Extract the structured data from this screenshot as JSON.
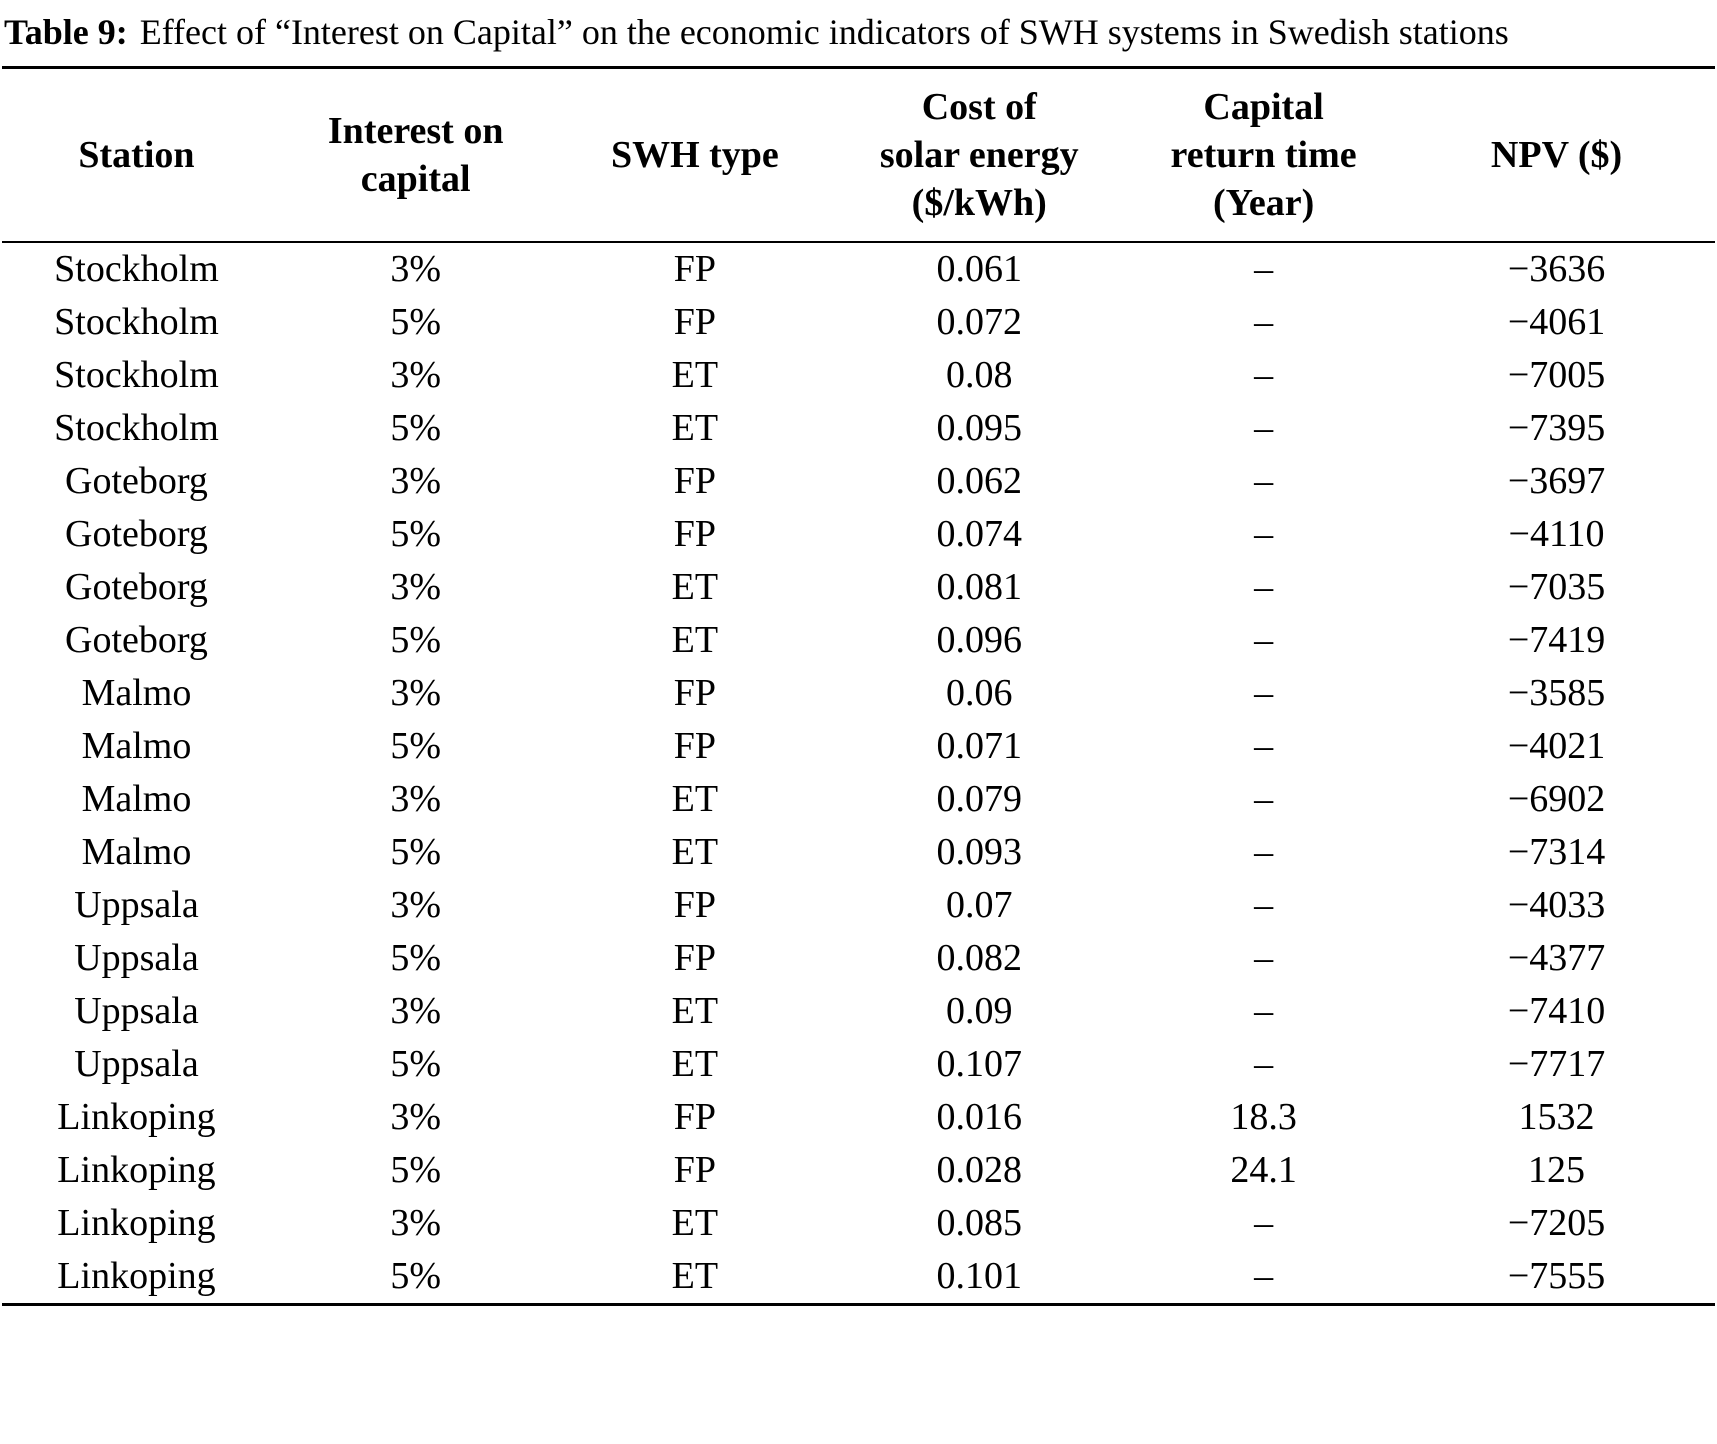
{
  "caption": {
    "label": "Table 9:",
    "text": "Effect of “Interest on Capital” on the economic indicators of SWH systems in Swedish stations"
  },
  "table": {
    "headers": [
      "Station",
      "Interest on\ncapital",
      "SWH type",
      "Cost of\nsolar energy\n($/kWh)",
      "Capital\nreturn time\n(Year)",
      "NPV ($)"
    ],
    "rows": [
      [
        "Stockholm",
        "3%",
        "FP",
        "0.061",
        "–",
        "−3636"
      ],
      [
        "Stockholm",
        "5%",
        "FP",
        "0.072",
        "–",
        "−4061"
      ],
      [
        "Stockholm",
        "3%",
        "ET",
        "0.08",
        "–",
        "−7005"
      ],
      [
        "Stockholm",
        "5%",
        "ET",
        "0.095",
        "–",
        "−7395"
      ],
      [
        "Goteborg",
        "3%",
        "FP",
        "0.062",
        "–",
        "−3697"
      ],
      [
        "Goteborg",
        "5%",
        "FP",
        "0.074",
        "–",
        "−4110"
      ],
      [
        "Goteborg",
        "3%",
        "ET",
        "0.081",
        "–",
        "−7035"
      ],
      [
        "Goteborg",
        "5%",
        "ET",
        "0.096",
        "–",
        "−7419"
      ],
      [
        "Malmo",
        "3%",
        "FP",
        "0.06",
        "–",
        "−3585"
      ],
      [
        "Malmo",
        "5%",
        "FP",
        "0.071",
        "–",
        "−4021"
      ],
      [
        "Malmo",
        "3%",
        "ET",
        "0.079",
        "–",
        "−6902"
      ],
      [
        "Malmo",
        "5%",
        "ET",
        "0.093",
        "–",
        "−7314"
      ],
      [
        "Uppsala",
        "3%",
        "FP",
        "0.07",
        "–",
        "−4033"
      ],
      [
        "Uppsala",
        "5%",
        "FP",
        "0.082",
        "–",
        "−4377"
      ],
      [
        "Uppsala",
        "3%",
        "ET",
        "0.09",
        "–",
        "−7410"
      ],
      [
        "Uppsala",
        "5%",
        "ET",
        "0.107",
        "–",
        "−7717"
      ],
      [
        "Linkoping",
        "3%",
        "FP",
        "0.016",
        "18.3",
        "1532"
      ],
      [
        "Linkoping",
        "5%",
        "FP",
        "0.028",
        "24.1",
        "125"
      ],
      [
        "Linkoping",
        "3%",
        "ET",
        "0.085",
        "–",
        "−7205"
      ],
      [
        "Linkoping",
        "5%",
        "ET",
        "0.101",
        "–",
        "−7555"
      ]
    ]
  }
}
